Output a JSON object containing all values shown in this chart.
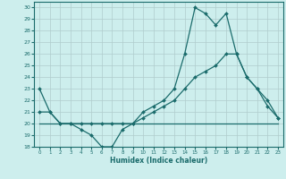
{
  "xlabel": "Humidex (Indice chaleur)",
  "bg_color": "#cdeeed",
  "line_color": "#1a6b6b",
  "grid_color": "#b0cccc",
  "xlim": [
    -0.5,
    23.5
  ],
  "ylim": [
    18,
    30.5
  ],
  "xticks": [
    0,
    1,
    2,
    3,
    4,
    5,
    6,
    7,
    8,
    9,
    10,
    11,
    12,
    13,
    14,
    15,
    16,
    17,
    18,
    19,
    20,
    21,
    22,
    23
  ],
  "yticks": [
    18,
    19,
    20,
    21,
    22,
    23,
    24,
    25,
    26,
    27,
    28,
    29,
    30
  ],
  "line1_x": [
    0,
    1,
    2,
    3,
    4,
    5,
    6,
    7,
    8,
    9,
    10,
    11,
    12,
    13,
    14,
    15,
    16,
    17,
    18,
    19,
    20,
    21,
    22,
    23
  ],
  "line1_y": [
    23,
    21,
    20,
    20,
    19.5,
    19,
    18,
    18,
    19.5,
    20,
    21,
    21.5,
    22,
    23,
    26,
    30,
    29.5,
    28.5,
    29.5,
    26,
    24,
    23,
    22,
    20.5
  ],
  "line2_x": [
    0,
    1,
    2,
    3,
    4,
    5,
    6,
    7,
    8,
    9,
    10,
    11,
    12,
    13,
    14,
    15,
    16,
    17,
    18,
    19,
    20,
    21,
    22,
    23
  ],
  "line2_y": [
    21,
    21,
    20,
    20,
    20,
    20,
    20,
    20,
    20,
    20,
    20.5,
    21,
    21.5,
    22,
    23,
    24,
    24.5,
    25,
    26,
    26,
    24,
    23,
    21.5,
    20.5
  ],
  "line3_x": [
    0,
    1,
    2,
    3,
    4,
    5,
    6,
    7,
    8,
    9,
    10,
    11,
    12,
    13,
    14,
    15,
    16,
    17,
    18,
    19,
    20,
    21,
    22,
    23
  ],
  "line3_y": [
    20,
    20,
    20,
    20,
    20,
    20,
    20,
    20,
    20,
    20,
    20,
    20,
    20,
    20,
    20,
    20,
    20,
    20,
    20,
    20,
    20,
    20,
    20,
    20
  ]
}
